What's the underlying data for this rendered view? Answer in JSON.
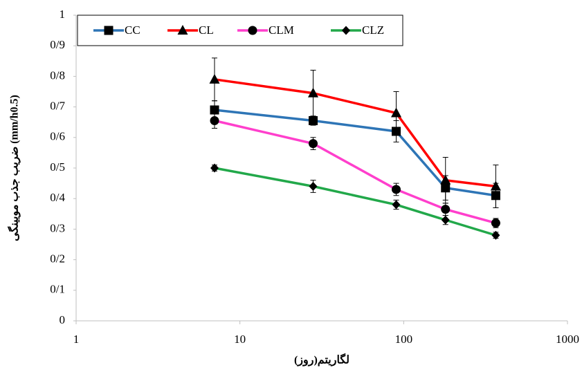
{
  "chart_data": {
    "type": "line",
    "x_label": "لگاریتم(روز)",
    "y_label": "ضریب جذب مویینگی (mm/h0.5)",
    "x": [
      7,
      28,
      90,
      180,
      365
    ],
    "xscale": "log",
    "xlim": [
      1,
      1000
    ],
    "xticks": [
      1,
      10,
      100,
      1000
    ],
    "ylim": [
      0,
      1
    ],
    "yticks": [
      0,
      {
        "value": 0.1,
        "label": "0/1"
      },
      {
        "value": 0.2,
        "label": "0/2"
      },
      {
        "value": 0.3,
        "label": "0/3"
      },
      {
        "value": 0.4,
        "label": "0/4"
      },
      {
        "value": 0.5,
        "label": "0/5"
      },
      {
        "value": 0.6,
        "label": "0/6"
      },
      {
        "value": 0.7,
        "label": "0/7"
      },
      {
        "value": 0.8,
        "label": "0/8"
      },
      {
        "value": 0.9,
        "label": "0/9"
      },
      1
    ],
    "grid": false,
    "legend": "top-left",
    "series": [
      {
        "name": "CC",
        "color": "#2e75b6",
        "marker": "square",
        "values": [
          0.69,
          0.655,
          0.62,
          0.435,
          0.41
        ],
        "errors": [
          0.03,
          0.015,
          0.035,
          0.04,
          0.04
        ]
      },
      {
        "name": "CL",
        "color": "#ff0000",
        "marker": "triangle",
        "values": [
          0.79,
          0.745,
          0.68,
          0.46,
          0.44
        ],
        "errors": [
          0.07,
          0.075,
          0.07,
          0.075,
          0.07
        ]
      },
      {
        "name": "CLM",
        "color": "#ff3fcc",
        "marker": "circle",
        "values": [
          0.655,
          0.58,
          0.43,
          0.365,
          0.32
        ],
        "errors": [
          0.025,
          0.02,
          0.02,
          0.02,
          0.015
        ]
      },
      {
        "name": "CLZ",
        "color": "#22a84a",
        "marker": "diamond",
        "values": [
          0.5,
          0.44,
          0.38,
          0.33,
          0.28
        ],
        "errors": [
          0.01,
          0.02,
          0.015,
          0.015,
          0.01
        ]
      }
    ]
  }
}
